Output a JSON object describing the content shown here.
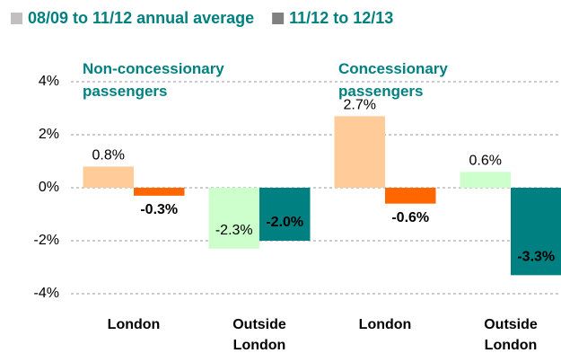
{
  "chart_data": {
    "type": "bar",
    "categories": [
      "London",
      "Outside London",
      "London",
      "Outside London"
    ],
    "series": [
      {
        "name": "08/09 to 11/12 annual average",
        "color": "#c0c0c0",
        "colors": [
          "#ffcc99",
          "#ccffcc",
          "#ffcc99",
          "#ccffcc"
        ],
        "values": [
          0.8,
          -2.3,
          2.7,
          0.6
        ],
        "value_labels": [
          "0.8%",
          "-2.3%",
          "2.7%",
          "0.6%"
        ]
      },
      {
        "name": "11/12 to 12/13",
        "color": "#808080",
        "colors": [
          "#ff6600",
          "#008080",
          "#ff6600",
          "#008080"
        ],
        "values": [
          -0.3,
          -2.0,
          -0.6,
          -3.3
        ],
        "value_labels": [
          "-0.3%",
          "-2.0%",
          "-0.6%",
          "-3.3%"
        ]
      }
    ],
    "annotations": [
      "Non-concessionary passengers",
      "Concessionary passengers"
    ],
    "ylim": [
      -4,
      4
    ],
    "yticks": [
      {
        "value": -4,
        "label": "-4%"
      },
      {
        "value": -2,
        "label": "-2%"
      },
      {
        "value": 0,
        "label": "0%"
      },
      {
        "value": 2,
        "label": "2%"
      },
      {
        "value": 4,
        "label": "4%"
      }
    ],
    "grid": true,
    "legend": "top"
  }
}
